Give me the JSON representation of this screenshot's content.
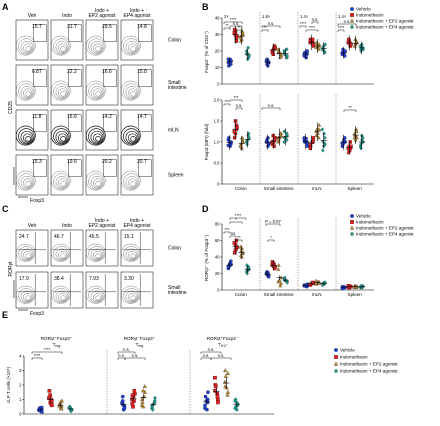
{
  "colors": {
    "vehicle": "#1f3fd0",
    "indomethacin": "#e02020",
    "ep2": "#b8862f",
    "ep4": "#1a9c8c"
  },
  "legend": [
    "Vehicle",
    "Indomethacin",
    "Indomethacin + EP2 agonist",
    "Indomethacin + EP4 agonist"
  ],
  "panelA": {
    "letter": "A",
    "cols": [
      "Veh",
      "Indo",
      "Indo +\nEP2 agonist",
      "Indo +\nEP4 agonist"
    ],
    "rows": [
      "Colon",
      "Small\nintestine",
      "mLN",
      "Spleen"
    ],
    "values": [
      [
        "15.7",
        "31.7",
        "29.6",
        "14.8"
      ],
      [
        "6.87",
        "22.2",
        "16.6",
        "15.8"
      ],
      [
        "11.8",
        "16.6",
        "14.2",
        "14.7"
      ],
      [
        "15.3",
        "19.6",
        "20.2",
        "20.7"
      ]
    ],
    "yaxis": "CD25",
    "xaxis": "Foxp3"
  },
  "panelB": {
    "letter": "B",
    "groups": [
      "Colon",
      "Small intestine",
      "mLN",
      "Spleen"
    ],
    "ylabel_top": "Foxp3⁺ (% of CD4⁺)",
    "ylabel_bottom": "Foxp3 (MFI) (fold)",
    "fold": [
      "2×",
      "1.8×",
      "1.4×",
      "1.4×"
    ],
    "sig": [
      "**",
      "****",
      "n.s.",
      "**",
      "**",
      "n.s.",
      "****",
      "****",
      "n.s.",
      "****",
      "n.s.",
      "***",
      "***",
      "n.s.",
      "n.s.",
      "**"
    ],
    "chart_data": [
      {
        "type": "scatter",
        "ylim": [
          0,
          40
        ],
        "yticks": [
          "0",
          "10",
          "20",
          "30",
          "40"
        ],
        "series": [
          {
            "name": "Vehicle",
            "values": [
              [
                14,
                15,
                11,
                12,
                15,
                14,
                13
              ],
              [
                14,
                13,
                12,
                14,
                11,
                15,
                13
              ],
              [
                19,
                18,
                20,
                17,
                18,
                19,
                16
              ],
              [
                19,
                18,
                21,
                17,
                19,
                20,
                18
              ]
            ]
          },
          {
            "name": "Indomethacin",
            "values": [
              [
                28,
                32,
                30,
                26,
                33,
                29,
                31
              ],
              [
                20,
                22,
                19,
                23,
                18,
                21,
                22
              ],
              [
                25,
                27,
                24,
                26,
                23,
                25,
                27
              ],
              [
                24,
                26,
                25,
                23,
                27,
                24,
                25
              ]
            ]
          },
          {
            "name": "Indomethacin + EP2 agonist",
            "values": [
              [
                30,
                26,
                32,
                27,
                29,
                31,
                28
              ],
              [
                19,
                17,
                21,
                18,
                20,
                16,
                19
              ],
              [
                22,
                24,
                21,
                25,
                23,
                22,
                24
              ],
              [
                25,
                23,
                26,
                24,
                27,
                25,
                23
              ]
            ]
          },
          {
            "name": "Indomethacin + EP4 agonist",
            "values": [
              [
                17,
                20,
                16,
                19,
                15,
                22,
                18
              ],
              [
                18,
                16,
                20,
                17,
                19,
                21,
                18
              ],
              [
                21,
                23,
                20,
                22,
                19,
                21,
                24
              ],
              [
                21,
                23,
                22,
                20,
                24,
                22,
                21
              ]
            ]
          }
        ]
      },
      {
        "type": "scatter",
        "ylim": [
          0,
          2
        ],
        "yticks": [
          "0",
          "0.5",
          "1.0",
          "1.5",
          "2.0"
        ],
        "series": [
          {
            "name": "Vehicle",
            "values": [
              [
                1.0,
                0.9,
                1.1,
                0.95,
                1.05,
                1.0,
                0.92
              ],
              [
                1.0,
                0.95,
                1.05,
                0.9,
                1.1,
                1.0,
                0.97
              ],
              [
                1.0,
                1.1,
                0.9,
                1.05,
                0.95,
                1.0,
                1.08
              ],
              [
                1.0,
                1.05,
                0.95,
                1.1,
                0.9,
                1.0,
                0.97
              ]
            ]
          },
          {
            "name": "Indomethacin",
            "values": [
              [
                1.3,
                1.5,
                1.2,
                1.4,
                1.1,
                1.35,
                1.25
              ],
              [
                1.0,
                1.1,
                0.95,
                1.05,
                1.15,
                1.0,
                0.9
              ],
              [
                1.0,
                0.9,
                1.1,
                0.85,
                1.05,
                0.95,
                1.0
              ],
              [
                0.85,
                0.9,
                0.8,
                1.0,
                0.75,
                0.9,
                0.85
              ]
            ]
          },
          {
            "name": "Indomethacin + EP2 agonist",
            "values": [
              [
                1.0,
                0.9,
                1.1,
                0.85,
                0.95,
                1.05,
                0.9
              ],
              [
                1.1,
                1.2,
                1.0,
                1.15,
                1.05,
                1.2,
                1.1
              ],
              [
                1.2,
                1.3,
                1.1,
                1.25,
                1.4,
                1.15,
                1.3
              ],
              [
                1.1,
                1.2,
                1.3,
                1.05,
                1.15,
                1.25,
                1.1
              ]
            ]
          },
          {
            "name": "Indomethacin + EP4 agonist",
            "values": [
              [
                1.1,
                1.0,
                1.2,
                0.95,
                1.05,
                1.15,
                1.0
              ],
              [
                1.1,
                1.2,
                1.0,
                1.15,
                1.25,
                1.05,
                1.1
              ],
              [
                1.0,
                0.9,
                1.2,
                0.8,
                1.1,
                1.3,
                0.95
              ],
              [
                1.0,
                0.9,
                1.1,
                0.85,
                1.05,
                1.15,
                0.95
              ]
            ]
          }
        ]
      }
    ]
  },
  "panelC": {
    "letter": "C",
    "cols": [
      "Veh",
      "Indo",
      "Indo +\nEP2 agonist",
      "Indo +\nEP4 agonist"
    ],
    "rows": [
      "Colon",
      "Small\nintestine"
    ],
    "values": [
      [
        "24.7",
        "46.7",
        "45.5",
        "15.1"
      ],
      [
        "17.9",
        "38.4",
        "7.93",
        "3.30"
      ]
    ],
    "yaxis": "RORγt",
    "xaxis": "Foxp3"
  },
  "panelD": {
    "letter": "D",
    "groups": [
      "Colon",
      "Small intestine",
      "mLN",
      "Spleen"
    ],
    "ylabel": "RORγt⁺ (% of Foxp3⁺)",
    "sig": [
      "*",
      "****",
      "***",
      "ns",
      "**",
      "P = 0.07",
      "*"
    ],
    "chart_data": {
      "type": "scatter",
      "ylim": [
        0,
        80
      ],
      "yticks": [
        "0",
        "20",
        "40",
        "60",
        "80"
      ],
      "series": [
        {
          "name": "Vehicle",
          "values": [
            [
              32,
              30,
              28,
              35,
              26,
              31,
              29
            ],
            [
              20,
              18,
              22,
              17,
              21,
              19,
              16
            ],
            [
              6,
              5,
              7,
              6,
              4,
              5,
              6
            ],
            [
              3,
              4,
              2,
              3,
              4,
              3,
              2
            ]
          ]
        },
        {
          "name": "Indomethacin",
          "values": [
            [
              50,
              55,
              48,
              60,
              45,
              52,
              57
            ],
            [
              30,
              28,
              34,
              26,
              32,
              29,
              31
            ],
            [
              8,
              7,
              9,
              6,
              8,
              7,
              9
            ],
            [
              4,
              3,
              5,
              4,
              3,
              4,
              5
            ]
          ]
        },
        {
          "name": "Indomethacin + EP2 agonist",
          "values": [
            [
              45,
              42,
              50,
              40,
              47,
              44,
              52
            ],
            [
              10,
              15,
              25,
              8,
              30,
              5,
              12
            ],
            [
              9,
              8,
              10,
              7,
              9,
              11,
              8
            ],
            [
              4,
              5,
              3,
              4,
              5,
              4,
              3
            ]
          ]
        },
        {
          "name": "Indomethacin + EP4 agonist",
          "values": [
            [
              25,
              22,
              28,
              20,
              26,
              24,
              30
            ],
            [
              12,
              10,
              14,
              9,
              13,
              11,
              15
            ],
            [
              8,
              7,
              9,
              6,
              8,
              7,
              9
            ],
            [
              4,
              3,
              5,
              4,
              3,
              4,
              5
            ]
          ]
        }
      ]
    }
  },
  "panelE": {
    "letter": "E",
    "ylabel": "cLP T cells (×10⁵)",
    "groups": [
      "RORγt⁺Foxp3⁺ Tᵣₑᵍ",
      "RORγt⁻Foxp3⁺ Tᵣₑᵍ",
      "RORγt⁺Foxp3⁻ Tᴴ¹⁷"
    ],
    "group_lines": [
      [
        "RORγt⁺Foxp3⁺",
        "T",
        "reg"
      ],
      [
        "RORγt⁻Foxp3⁺",
        "T",
        "reg"
      ],
      [
        "RORγt⁺Foxp3⁻",
        "T",
        "H17"
      ]
    ],
    "sig": [
      "****",
      "****",
      "n.s.",
      "n.s.",
      "n.s.",
      "n.s.",
      "n.s.",
      "n.s."
    ],
    "chart_data": {
      "type": "scatter",
      "ylim": [
        0,
        4
      ],
      "yticks": [
        "0",
        "1",
        "2",
        "3",
        "4"
      ],
      "series": [
        {
          "name": "Vehicle",
          "values": [
            [
              0.3,
              0.2,
              0.4,
              0.35,
              0.25,
              0.15,
              0.3,
              0.45
            ],
            [
              0.8,
              0.5,
              1.2,
              0.6,
              0.3,
              0.9,
              0.4,
              0.7
            ],
            [
              1.0,
              0.6,
              1.5,
              0.4,
              0.8,
              1.2,
              0.3,
              0.9
            ]
          ]
        },
        {
          "name": "Indomethacin",
          "values": [
            [
              1.0,
              0.8,
              1.3,
              0.7,
              1.6,
              0.9,
              1.1,
              0.6
            ],
            [
              1.0,
              1.4,
              0.7,
              1.6,
              0.5,
              1.2,
              0.9,
              1.3
            ],
            [
              1.4,
              2.0,
              1.0,
              2.5,
              0.8,
              1.6,
              1.2,
              1.9
            ]
          ]
        },
        {
          "name": "Indomethacin + EP2 agonist",
          "values": [
            [
              0.5,
              0.7,
              0.4,
              0.8,
              0.6,
              0.35,
              0.55,
              0.9
            ],
            [
              1.0,
              1.5,
              0.6,
              1.9,
              0.8,
              1.2,
              0.5,
              1.6
            ],
            [
              1.8,
              2.6,
              1.3,
              3.0,
              1.5,
              2.2,
              2.8,
              1.9
            ]
          ]
        },
        {
          "name": "Indomethacin + EP4 agonist",
          "values": [
            [
              0.3,
              0.45,
              0.25,
              0.5,
              0.35,
              0.2,
              0.4,
              0.3
            ],
            [
              0.6,
              0.9,
              0.4,
              1.1,
              0.5,
              0.8,
              0.3,
              0.7
            ],
            [
              0.5,
              0.8,
              0.3,
              1.0,
              0.6,
              0.4,
              0.7,
              0.9
            ]
          ]
        }
      ]
    }
  }
}
